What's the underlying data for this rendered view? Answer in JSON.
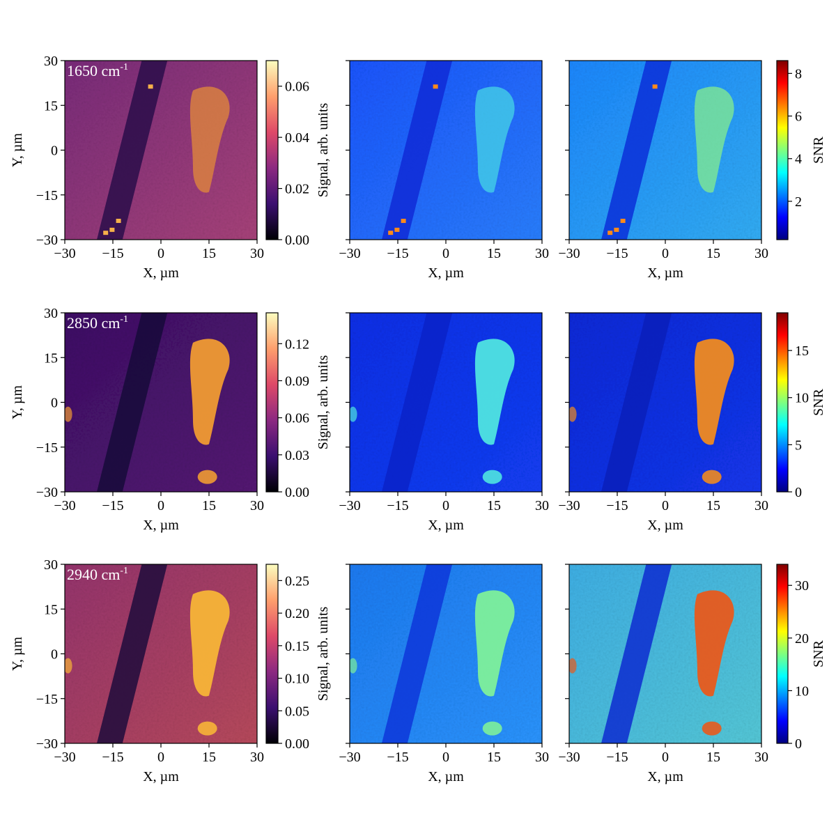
{
  "axis_labels": {
    "x": "X, µm",
    "y": "Y, µm",
    "signal_colorbar": "Signal, arb. units",
    "snr_colorbar": "SNR"
  },
  "colors": {
    "signal_colormap": [
      "#000004",
      "#3b0f70",
      "#8c2981",
      "#de4968",
      "#fe9f6d",
      "#fcfdbf"
    ],
    "snr_colormap": [
      "#00007f",
      "#0000ff",
      "#007fff",
      "#00ffff",
      "#7fff7f",
      "#ffff00",
      "#ff7f00",
      "#ff0000",
      "#7f0000"
    ],
    "image_colormap_signal": "inferno",
    "image_colormap_snr": "jet"
  },
  "chart_data": [
    {
      "type": "heatmap",
      "row": 1,
      "wavenumber": "1650",
      "wavenumber_unit": "cm",
      "wavenumber_exp": "-1",
      "x_ticks": [
        "−30",
        "−15",
        "0",
        "15",
        "30"
      ],
      "y_ticks": [
        "30",
        "15",
        "0",
        "−15",
        "−30"
      ],
      "xlim": [
        -30,
        30
      ],
      "ylim": [
        -30,
        30
      ],
      "panels": [
        "signal",
        "noise",
        "snr"
      ],
      "signal_colorbar": {
        "ticks": [
          "0.00",
          "0.02",
          "0.04",
          "0.06"
        ],
        "values": [
          0,
          0.02,
          0.04,
          0.06
        ],
        "range": [
          0,
          0.07
        ]
      },
      "snr_colorbar": {
        "ticks": [
          "2",
          "4",
          "6",
          "8"
        ],
        "values": [
          2,
          4,
          6,
          8
        ],
        "range": [
          0.2,
          8.6
        ]
      }
    },
    {
      "type": "heatmap",
      "row": 2,
      "wavenumber": "2850",
      "wavenumber_unit": "cm",
      "wavenumber_exp": "-1",
      "x_ticks": [
        "−30",
        "−15",
        "0",
        "15",
        "30"
      ],
      "y_ticks": [
        "30",
        "15",
        "0",
        "−15",
        "−30"
      ],
      "xlim": [
        -30,
        30
      ],
      "ylim": [
        -30,
        30
      ],
      "panels": [
        "signal",
        "noise",
        "snr"
      ],
      "signal_colorbar": {
        "ticks": [
          "0.00",
          "0.03",
          "0.06",
          "0.09",
          "0.12"
        ],
        "values": [
          0,
          0.03,
          0.06,
          0.09,
          0.12
        ],
        "range": [
          0,
          0.145
        ]
      },
      "snr_colorbar": {
        "ticks": [
          "0",
          "5",
          "10",
          "15"
        ],
        "values": [
          0,
          5,
          10,
          15
        ],
        "range": [
          0,
          19
        ]
      }
    },
    {
      "type": "heatmap",
      "row": 3,
      "wavenumber": "2940",
      "wavenumber_unit": "cm",
      "wavenumber_exp": "-1",
      "x_ticks": [
        "−30",
        "−15",
        "0",
        "15",
        "30"
      ],
      "y_ticks": [
        "30",
        "15",
        "0",
        "−15",
        "−30"
      ],
      "xlim": [
        -30,
        30
      ],
      "ylim": [
        -30,
        30
      ],
      "panels": [
        "signal",
        "noise",
        "snr"
      ],
      "signal_colorbar": {
        "ticks": [
          "0.00",
          "0.05",
          "0.10",
          "0.15",
          "0.20",
          "0.25"
        ],
        "values": [
          0,
          0.05,
          0.1,
          0.15,
          0.2,
          0.25
        ],
        "range": [
          0,
          0.275
        ]
      },
      "snr_colorbar": {
        "ticks": [
          "0",
          "10",
          "20",
          "30"
        ],
        "values": [
          0,
          10,
          20,
          30
        ],
        "range": [
          0,
          34
        ]
      }
    }
  ]
}
